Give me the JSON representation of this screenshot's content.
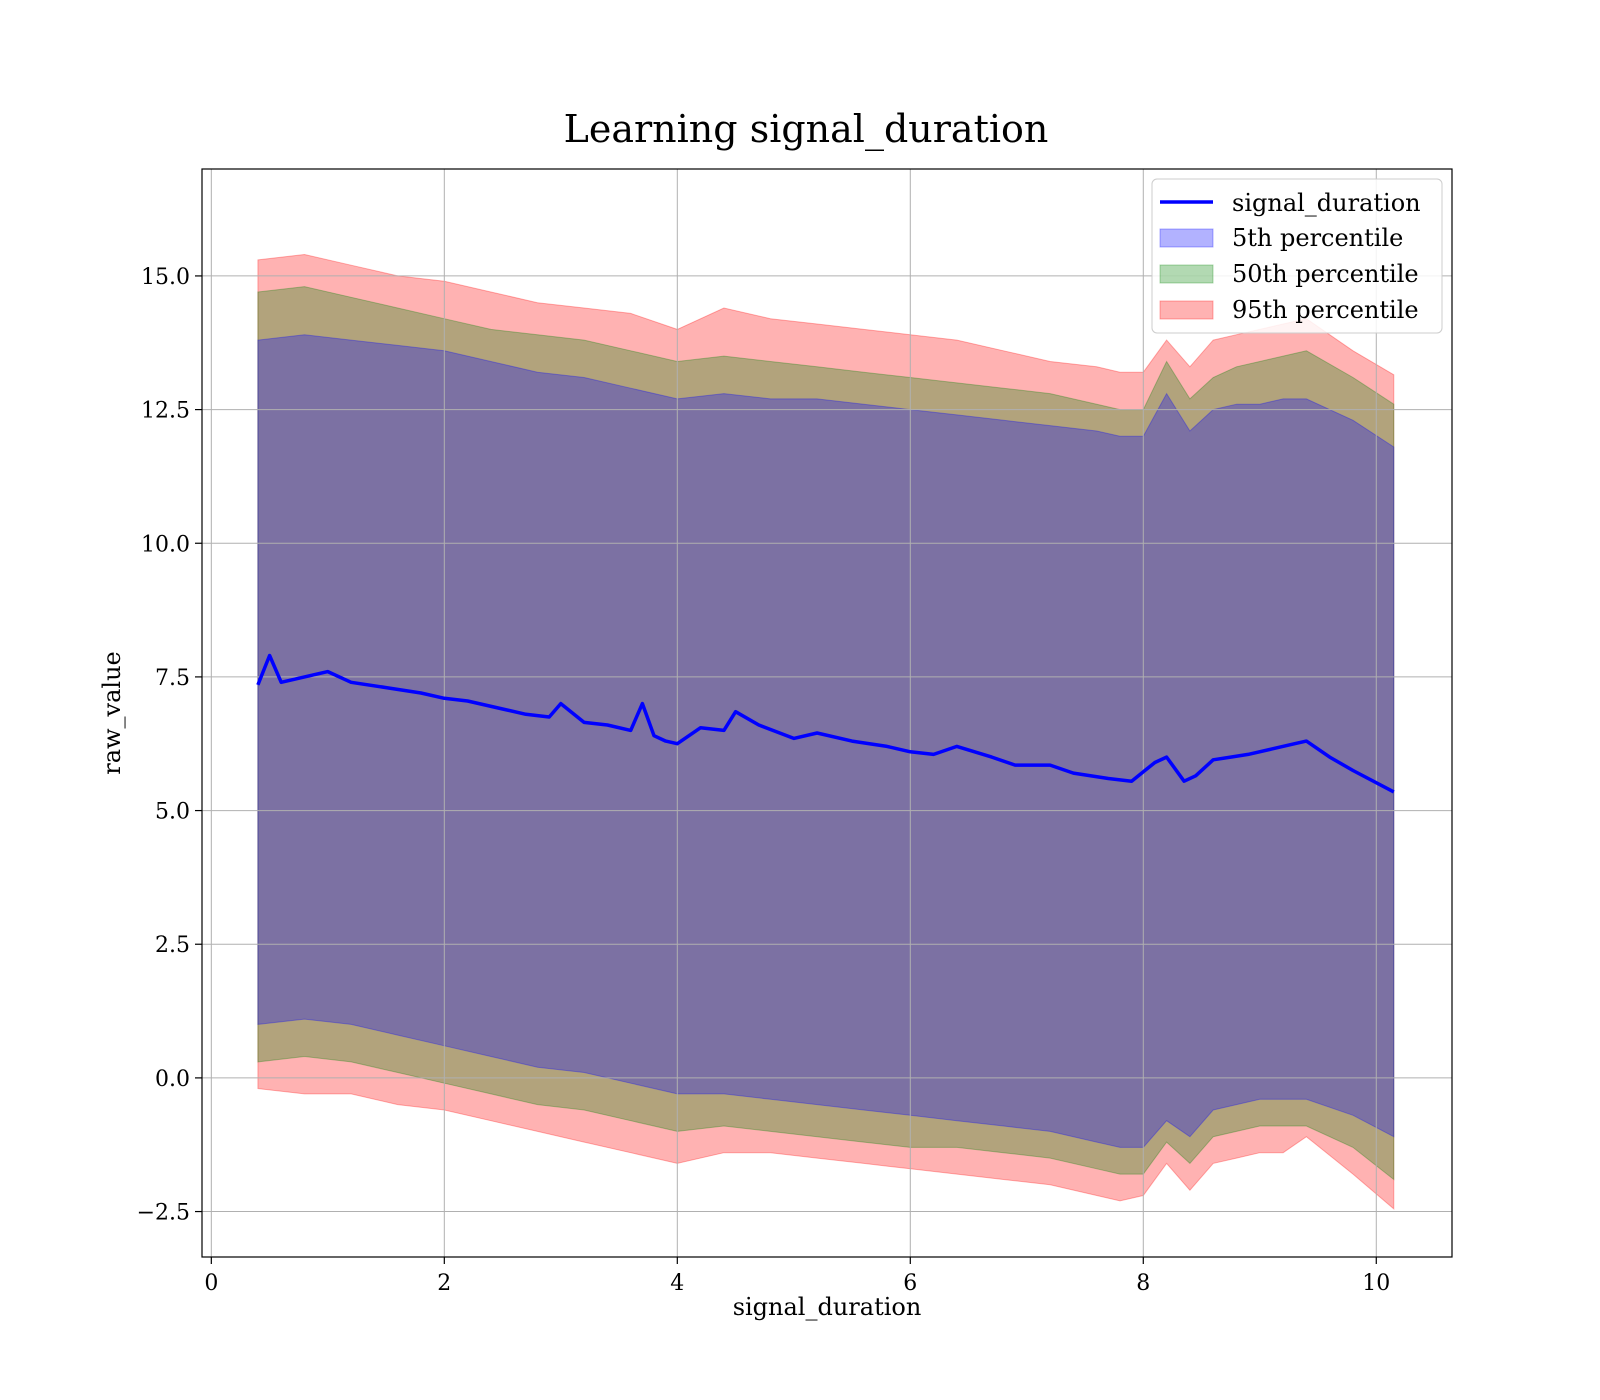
{
  "chart_data": {
    "type": "line",
    "title": "Learning signal_duration",
    "xlabel": "signal_duration",
    "ylabel": "raw_value",
    "xlim": [
      -0.08,
      10.65
    ],
    "ylim": [
      -3.35,
      17.0
    ],
    "xticks": [
      0,
      2,
      4,
      6,
      8,
      10
    ],
    "xtick_labels": [
      "0",
      "2",
      "4",
      "6",
      "8",
      "10"
    ],
    "yticks": [
      -2.5,
      0.0,
      2.5,
      5.0,
      7.5,
      10.0,
      12.5,
      15.0
    ],
    "ytick_labels": [
      "−2.5",
      "0.0",
      "2.5",
      "5.0",
      "7.5",
      "10.0",
      "12.5",
      "15.0"
    ],
    "grid": true,
    "legend_position": "upper right",
    "colors": {
      "line": "#0000ff",
      "p5": "#0000ff",
      "p50": "#008000",
      "p95": "#ff0000"
    },
    "series": [
      {
        "name": "signal_duration",
        "kind": "line",
        "x": [
          0.4,
          0.5,
          0.6,
          0.8,
          1.0,
          1.2,
          1.5,
          1.8,
          2.0,
          2.2,
          2.5,
          2.7,
          2.9,
          3.0,
          3.2,
          3.4,
          3.6,
          3.7,
          3.8,
          3.9,
          4.0,
          4.2,
          4.4,
          4.5,
          4.7,
          5.0,
          5.2,
          5.5,
          5.8,
          6.0,
          6.2,
          6.4,
          6.7,
          6.9,
          7.2,
          7.4,
          7.7,
          7.9,
          8.1,
          8.2,
          8.35,
          8.45,
          8.6,
          8.75,
          8.9,
          9.1,
          9.3,
          9.4,
          9.6,
          9.8,
          10.15
        ],
        "y": [
          7.35,
          7.9,
          7.4,
          7.5,
          7.6,
          7.4,
          7.3,
          7.2,
          7.1,
          7.05,
          6.9,
          6.8,
          6.75,
          7.0,
          6.65,
          6.6,
          6.5,
          7.0,
          6.4,
          6.3,
          6.25,
          6.55,
          6.5,
          6.85,
          6.6,
          6.35,
          6.45,
          6.3,
          6.2,
          6.1,
          6.05,
          6.2,
          6.0,
          5.85,
          5.85,
          5.7,
          5.6,
          5.55,
          5.9,
          6.0,
          5.55,
          5.65,
          5.95,
          6.0,
          6.05,
          6.15,
          6.25,
          6.3,
          6.0,
          5.75,
          5.35
        ]
      },
      {
        "name": "5th percentile",
        "kind": "band",
        "x": [
          0.4,
          0.8,
          1.2,
          1.6,
          2.0,
          2.4,
          2.8,
          3.2,
          3.6,
          4.0,
          4.4,
          4.8,
          5.2,
          5.6,
          6.0,
          6.4,
          6.8,
          7.2,
          7.6,
          7.8,
          8.0,
          8.2,
          8.4,
          8.6,
          8.8,
          9.0,
          9.2,
          9.4,
          9.8,
          10.15
        ],
        "lower": [
          1.0,
          1.1,
          1.0,
          0.8,
          0.6,
          0.4,
          0.2,
          0.1,
          -0.1,
          -0.3,
          -0.3,
          -0.4,
          -0.5,
          -0.6,
          -0.7,
          -0.8,
          -0.9,
          -1.0,
          -1.2,
          -1.3,
          -1.3,
          -0.8,
          -1.1,
          -0.6,
          -0.5,
          -0.4,
          -0.4,
          -0.4,
          -0.7,
          -1.1
        ],
        "upper": [
          13.8,
          13.9,
          13.8,
          13.7,
          13.6,
          13.4,
          13.2,
          13.1,
          12.9,
          12.7,
          12.8,
          12.7,
          12.7,
          12.6,
          12.5,
          12.4,
          12.3,
          12.2,
          12.1,
          12.0,
          12.0,
          12.8,
          12.1,
          12.5,
          12.6,
          12.6,
          12.7,
          12.7,
          12.3,
          11.8
        ]
      },
      {
        "name": "50th percentile",
        "kind": "band",
        "x": [
          0.4,
          0.8,
          1.2,
          1.6,
          2.0,
          2.4,
          2.8,
          3.2,
          3.6,
          4.0,
          4.4,
          4.8,
          5.2,
          5.6,
          6.0,
          6.4,
          6.8,
          7.2,
          7.6,
          7.8,
          8.0,
          8.2,
          8.4,
          8.6,
          8.8,
          9.0,
          9.2,
          9.4,
          9.8,
          10.15
        ],
        "lower": [
          0.3,
          0.4,
          0.3,
          0.1,
          -0.1,
          -0.3,
          -0.5,
          -0.6,
          -0.8,
          -1.0,
          -0.9,
          -1.0,
          -1.1,
          -1.2,
          -1.3,
          -1.3,
          -1.4,
          -1.5,
          -1.7,
          -1.8,
          -1.8,
          -1.2,
          -1.6,
          -1.1,
          -1.0,
          -0.9,
          -0.9,
          -0.9,
          -1.3,
          -1.9
        ],
        "upper": [
          14.7,
          14.8,
          14.6,
          14.4,
          14.2,
          14.0,
          13.9,
          13.8,
          13.6,
          13.4,
          13.5,
          13.4,
          13.3,
          13.2,
          13.1,
          13.0,
          12.9,
          12.8,
          12.6,
          12.5,
          12.5,
          13.4,
          12.7,
          13.1,
          13.3,
          13.4,
          13.5,
          13.6,
          13.1,
          12.6
        ]
      },
      {
        "name": "95th percentile",
        "kind": "band",
        "x": [
          0.4,
          0.8,
          1.2,
          1.6,
          2.0,
          2.4,
          2.8,
          3.2,
          3.6,
          4.0,
          4.4,
          4.8,
          5.2,
          5.6,
          6.0,
          6.4,
          6.8,
          7.2,
          7.6,
          7.8,
          8.0,
          8.2,
          8.4,
          8.6,
          8.8,
          9.0,
          9.2,
          9.4,
          9.8,
          10.15
        ],
        "lower": [
          -0.2,
          -0.3,
          -0.3,
          -0.5,
          -0.6,
          -0.8,
          -1.0,
          -1.2,
          -1.4,
          -1.6,
          -1.4,
          -1.4,
          -1.5,
          -1.6,
          -1.7,
          -1.8,
          -1.9,
          -2.0,
          -2.2,
          -2.3,
          -2.2,
          -1.6,
          -2.1,
          -1.6,
          -1.5,
          -1.4,
          -1.4,
          -1.1,
          -1.8,
          -2.45
        ],
        "upper": [
          15.3,
          15.4,
          15.2,
          15.0,
          14.9,
          14.7,
          14.5,
          14.4,
          14.3,
          14.0,
          14.4,
          14.2,
          14.1,
          14.0,
          13.9,
          13.8,
          13.6,
          13.4,
          13.3,
          13.2,
          13.2,
          13.8,
          13.3,
          13.8,
          13.9,
          14.0,
          14.1,
          14.2,
          13.6,
          13.15
        ]
      }
    ]
  }
}
